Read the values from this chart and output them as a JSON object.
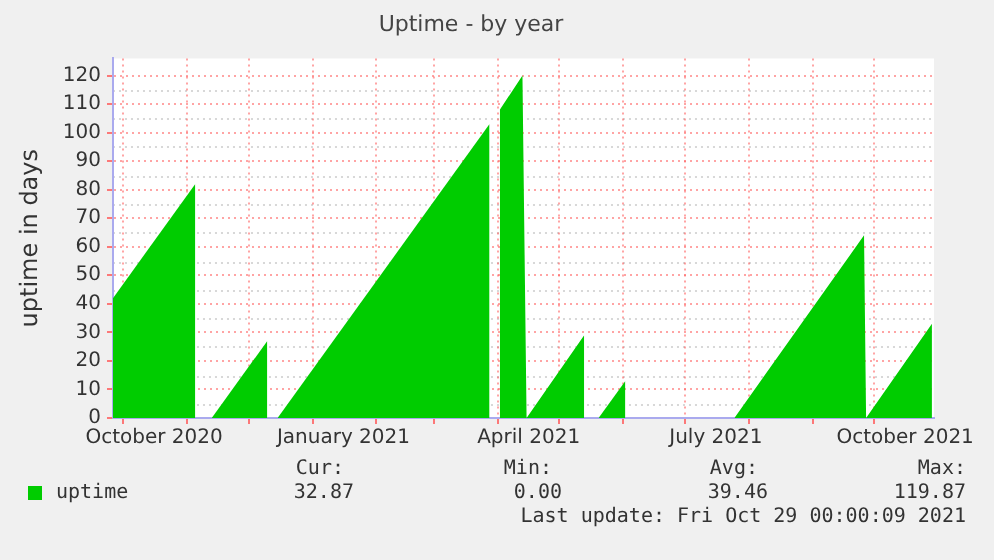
{
  "chart_data": {
    "type": "area",
    "title": "Uptime - by year",
    "ylabel": "uptime in days",
    "x": [
      "2020-09-26",
      "2020-11-05",
      "2020-11-09",
      "2020-11-13",
      "2020-12-10",
      "2020-12-12",
      "2020-12-15",
      "2021-03-28",
      "2021-03-30",
      "2021-04-02",
      "2021-04-13",
      "2021-04-15",
      "2021-05-13",
      "2021-05-17",
      "2021-05-20",
      "2021-06-02",
      "2021-06-04",
      "2021-07-25",
      "2021-09-26",
      "2021-09-27",
      "2021-10-29"
    ],
    "series": [
      {
        "name": "uptime",
        "color": "#00cc00",
        "values": [
          42,
          82,
          null,
          0,
          27,
          null,
          0,
          103,
          null,
          108,
          120,
          0,
          29,
          null,
          0,
          13,
          null,
          0,
          64,
          0,
          33
        ]
      }
    ],
    "xlim": [
      "2020-09-26",
      "2021-10-30"
    ],
    "xticks": [
      {
        "value": "2020-10-01",
        "label": null
      },
      {
        "value": "2020-10-16",
        "label": "October 2020"
      },
      {
        "value": "2020-11-01",
        "label": null
      },
      {
        "value": "2020-12-01",
        "label": null
      },
      {
        "value": "2021-01-01",
        "label": null
      },
      {
        "value": "2021-01-16",
        "label": "January 2021"
      },
      {
        "value": "2021-02-01",
        "label": null
      },
      {
        "value": "2021-03-01",
        "label": null
      },
      {
        "value": "2021-04-01",
        "label": null
      },
      {
        "value": "2021-04-16",
        "label": "April 2021"
      },
      {
        "value": "2021-05-01",
        "label": null
      },
      {
        "value": "2021-06-01",
        "label": null
      },
      {
        "value": "2021-07-01",
        "label": null
      },
      {
        "value": "2021-07-16",
        "label": "July 2021"
      },
      {
        "value": "2021-08-01",
        "label": null
      },
      {
        "value": "2021-09-01",
        "label": null
      },
      {
        "value": "2021-10-01",
        "label": null
      },
      {
        "value": "2021-10-16",
        "label": "October 2021"
      }
    ],
    "ylim": [
      0,
      126
    ],
    "yticks": [
      0,
      10,
      20,
      30,
      40,
      50,
      60,
      70,
      80,
      90,
      100,
      110,
      120
    ],
    "grid": true,
    "legend": "bottom left",
    "annotations": [
      "Cur:",
      "Min:",
      "Avg:",
      "Max:",
      "32.87",
      "0.00",
      "39.46",
      "119.87",
      "Last update: Fri Oct 29 00:00:09 2021"
    ]
  }
}
